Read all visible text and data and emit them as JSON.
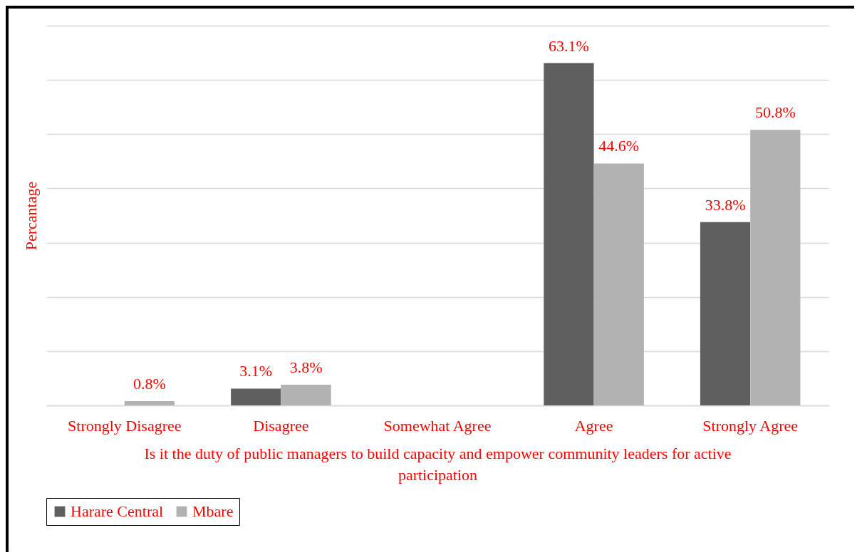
{
  "chart_data": {
    "type": "bar",
    "xlabel": "Is it the duty of public managers to build capacity and empower community leaders for active participation",
    "ylabel": "Percantage",
    "categories": [
      "Strongly Disagree",
      "Disagree",
      "Somewhat Agree",
      "Agree",
      "Strongly Agree"
    ],
    "series": [
      {
        "name": "Harare Central",
        "color": "#5f5f5f",
        "values": [
          null,
          3.1,
          null,
          63.1,
          33.8
        ],
        "value_labels": [
          null,
          "3.1%",
          null,
          "63.1%",
          "33.8%"
        ]
      },
      {
        "name": "Mbare",
        "color": "#b2b2b2",
        "values": [
          0.8,
          3.8,
          null,
          44.6,
          50.8
        ],
        "value_labels": [
          "0.8%",
          "3.8%",
          null,
          "44.6%",
          "50.8%"
        ]
      }
    ],
    "ylim": [
      0,
      70
    ],
    "yticks": [
      {
        "value": 0,
        "label": null
      },
      {
        "value": 10,
        "label": null
      },
      {
        "value": 20,
        "label": null
      },
      {
        "value": 30,
        "label": null
      },
      {
        "value": 40,
        "label": null
      },
      {
        "value": 50,
        "label": null
      },
      {
        "value": 60,
        "label": null
      },
      {
        "value": 70,
        "label": null
      }
    ],
    "grid": "y",
    "legend": "bottom",
    "tick_labels": "x"
  }
}
